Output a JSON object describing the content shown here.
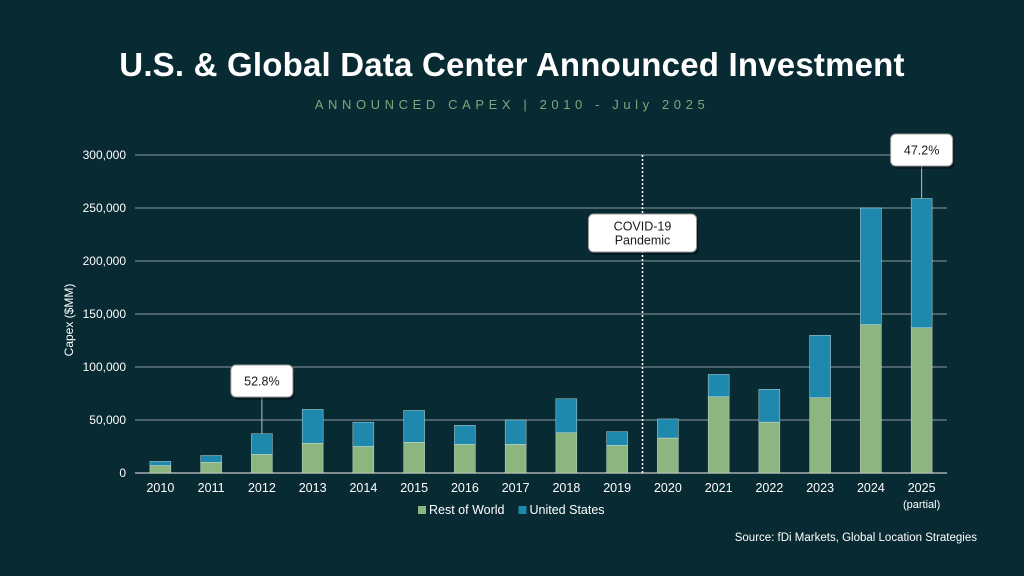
{
  "header": {
    "title": "U.S. & Global Data Center Announced Investment",
    "subtitle": "ANNOUNCED CAPEX | 2010 - July 2025"
  },
  "footer": {
    "source": "Source: fDi Markets, Global Location Strategies"
  },
  "chart_data": {
    "type": "bar",
    "stacked": true,
    "categories": [
      "2010",
      "2011",
      "2012",
      "2013",
      "2014",
      "2015",
      "2016",
      "2017",
      "2018",
      "2019",
      "2020",
      "2021",
      "2022",
      "2023",
      "2024",
      "2025"
    ],
    "category_sublabels": {
      "2025": "(partial)"
    },
    "series": [
      {
        "name": "Rest of World",
        "color": "#8db580",
        "values": [
          7000,
          10000,
          17500,
          28000,
          25000,
          29000,
          27000,
          27000,
          38000,
          26000,
          33000,
          72000,
          48000,
          71000,
          140000,
          137000
        ]
      },
      {
        "name": "United States",
        "color": "#1f88ad",
        "values": [
          4000,
          6500,
          19500,
          32000,
          23000,
          30000,
          18000,
          23000,
          32000,
          13000,
          18000,
          21000,
          31000,
          59000,
          110000,
          122000
        ]
      }
    ],
    "ylabel": "Capex ($MM)",
    "xlabel": "",
    "ylim": [
      0,
      300000
    ],
    "yticks": [
      0,
      50000,
      100000,
      150000,
      200000,
      250000,
      300000
    ],
    "ytick_labels": [
      "0",
      "50,000",
      "100,000",
      "150,000",
      "200,000",
      "250,000",
      "300,000"
    ],
    "grid": true,
    "legend_position": "bottom",
    "annotations": [
      {
        "text": "52.8%",
        "category": "2012"
      },
      {
        "text": "47.2%",
        "category": "2025"
      },
      {
        "text": "COVID-19 Pandemic",
        "lines": [
          "COVID-19",
          "Pandemic"
        ],
        "between": [
          "2019",
          "2020"
        ]
      }
    ]
  }
}
